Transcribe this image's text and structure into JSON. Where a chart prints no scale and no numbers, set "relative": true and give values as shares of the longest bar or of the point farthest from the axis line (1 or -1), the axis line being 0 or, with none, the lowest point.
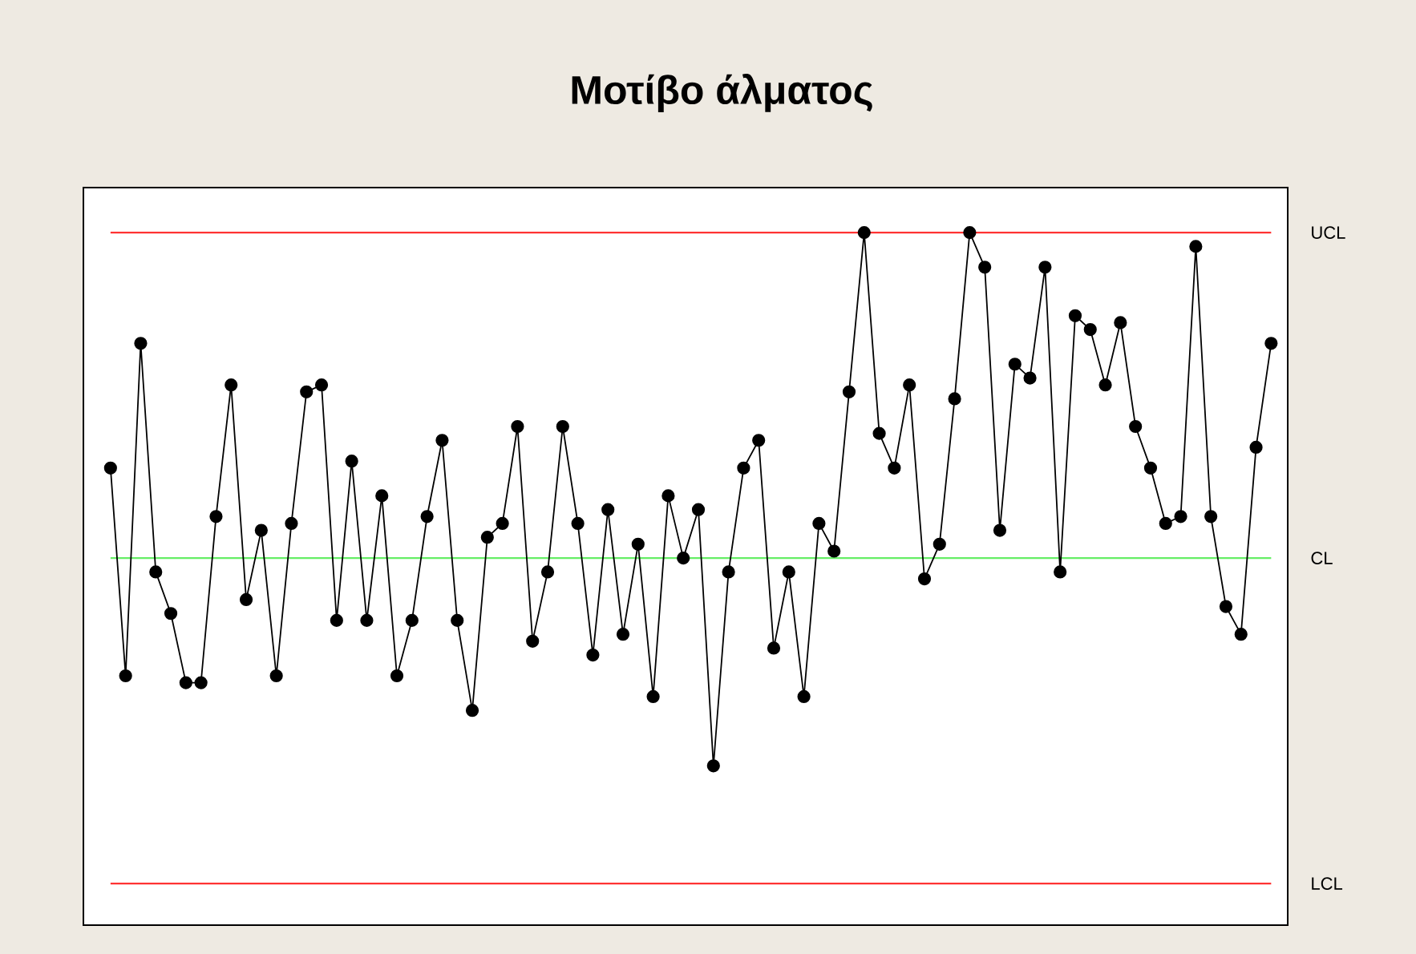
{
  "chart_data": {
    "type": "line",
    "title": "Μοτίβο άλματος",
    "relative": true,
    "marker": "circle",
    "line_style": "solid",
    "categories": [
      null,
      null,
      null,
      null,
      null,
      null,
      null,
      null,
      null,
      null,
      null,
      null,
      null,
      null,
      null,
      null,
      null,
      null,
      null,
      null,
      null,
      null,
      null,
      null,
      null,
      null,
      null,
      null,
      null,
      null,
      null,
      null,
      null,
      null,
      null,
      null,
      null,
      null,
      null,
      null,
      null,
      null,
      null,
      null,
      null,
      null,
      null,
      null,
      null,
      null,
      null,
      null,
      null,
      null,
      null,
      null,
      null,
      null,
      null,
      null,
      null,
      null,
      null,
      null,
      null,
      null,
      null,
      null,
      null,
      null,
      null,
      null,
      null,
      null,
      null,
      null,
      null,
      null
    ],
    "series": [
      {
        "color": "#000000",
        "values": [
          0.66,
          0.36,
          0.84,
          0.51,
          0.45,
          0.35,
          0.35,
          0.59,
          0.78,
          0.47,
          0.57,
          0.36,
          0.58,
          0.77,
          0.78,
          0.44,
          0.67,
          0.44,
          0.62,
          0.36,
          0.44,
          0.59,
          0.7,
          0.44,
          0.31,
          0.56,
          0.58,
          0.72,
          0.41,
          0.51,
          0.72,
          0.58,
          0.39,
          0.6,
          0.42,
          0.55,
          0.33,
          0.62,
          0.53,
          0.6,
          0.23,
          0.51,
          0.66,
          0.7,
          0.4,
          0.51,
          0.33,
          0.58,
          0.54,
          0.77,
          1.0,
          0.71,
          0.66,
          0.78,
          0.5,
          0.55,
          0.76,
          1.0,
          0.95,
          0.57,
          0.81,
          0.79,
          0.95,
          0.51,
          0.88,
          0.86,
          0.78,
          0.87,
          0.72,
          0.66,
          0.58,
          0.59,
          0.98,
          0.59,
          0.46,
          0.42,
          0.69,
          0.84
        ]
      }
    ],
    "ref_lines": [
      {
        "axis": "y",
        "value": 1.0,
        "label": "UCL",
        "color": "#ff3333"
      },
      {
        "axis": "y",
        "value": 0.53,
        "label": "CL",
        "color": "#66ee66"
      },
      {
        "axis": "y",
        "value": 0.06,
        "label": "LCL",
        "color": "#ff3333"
      }
    ]
  }
}
